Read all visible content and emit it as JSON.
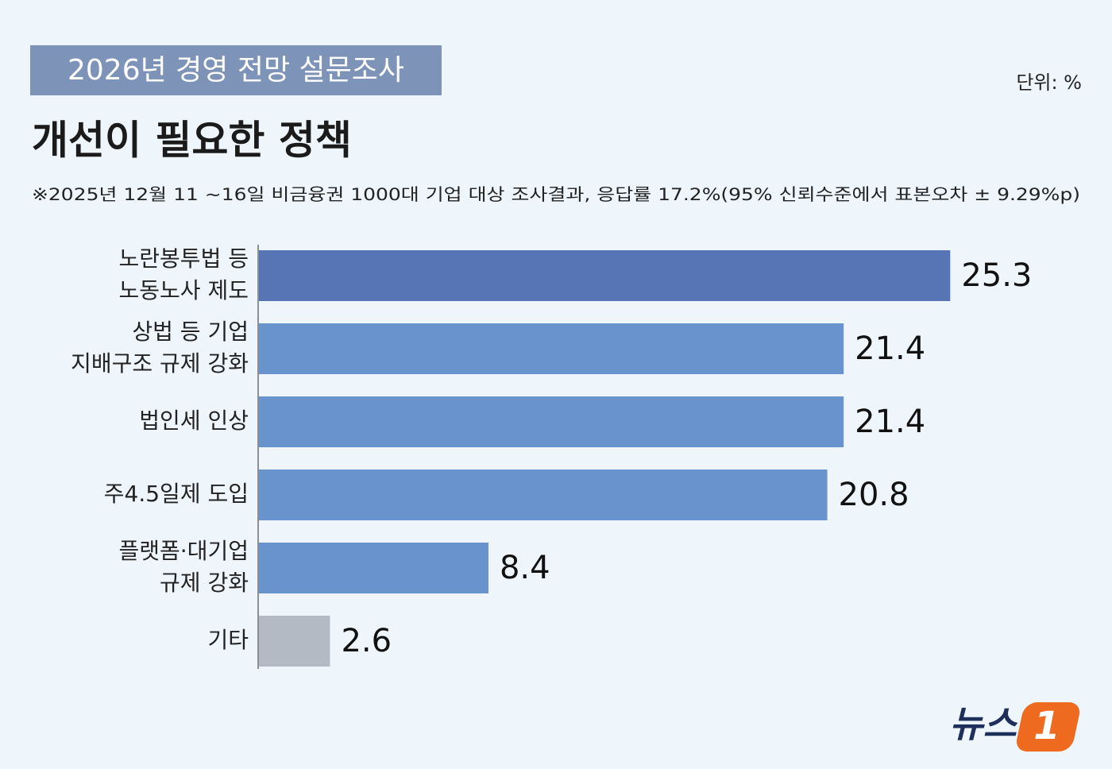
{
  "chart_data": {
    "type": "bar",
    "badge": "2026년 경영 전망 설문조사",
    "unit": "단위: %",
    "title": "개선이 필요한 정책",
    "note": "※2025년 12월 11 ~16일 비금융권 1000대 기업 대상 조사결과, 응답률 17.2%(95% 신뢰수준에서 표본오차 ± 9.29%p)",
    "categories": [
      [
        "노란봉투법 등",
        "노동노사 제도"
      ],
      [
        "상법 등 기업",
        "지배구조 규제 강화"
      ],
      [
        "법인세 인상"
      ],
      [
        "주4.5일제 도입"
      ],
      [
        "플랫폼·대기업",
        "규제 강화"
      ],
      [
        "기타"
      ]
    ],
    "values": [
      25.3,
      21.4,
      21.4,
      20.8,
      8.4,
      2.6
    ],
    "colors": [
      "#5774b4",
      "#6993cc",
      "#6993cc",
      "#6993cc",
      "#6993cc",
      "#b4bac3"
    ],
    "logo": {
      "text": "뉴스",
      "mark": "1"
    }
  }
}
